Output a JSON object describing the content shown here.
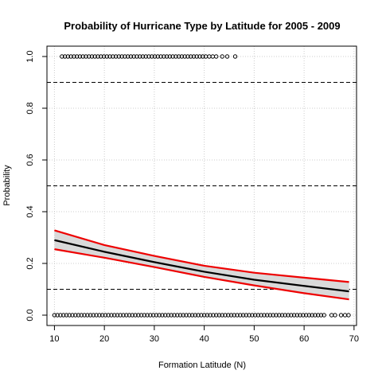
{
  "chart_data": {
    "type": "scatter",
    "title": "Probability of Hurricane Type by Latitude for 2005 - 2009",
    "xlabel": "Formation Latitude (N)",
    "ylabel": "Probability",
    "xlim": [
      8.5,
      70.5
    ],
    "ylim": [
      -0.04,
      1.04
    ],
    "x_ticks": [
      10,
      20,
      30,
      40,
      50,
      60,
      70
    ],
    "y_ticks": [
      0.0,
      0.2,
      0.4,
      0.6,
      0.8,
      1.0
    ],
    "x_tick_labels": [
      "10",
      "20",
      "30",
      "40",
      "50",
      "60",
      "70"
    ],
    "y_tick_labels": [
      "0.0",
      "0.2",
      "0.4",
      "0.6",
      "0.8",
      "1.0"
    ],
    "grid": true,
    "reference_lines_y": [
      0.1,
      0.5,
      0.9
    ],
    "points_y1": [
      11.5,
      12.1,
      12.7,
      13.3,
      13.9,
      14.5,
      15.1,
      15.7,
      16.3,
      16.9,
      17.5,
      18.1,
      18.7,
      19.3,
      19.9,
      20.5,
      21.1,
      21.7,
      22.3,
      22.9,
      23.5,
      24.1,
      24.7,
      25.3,
      25.9,
      26.5,
      27.1,
      27.7,
      28.3,
      28.9,
      29.5,
      30.1,
      30.7,
      31.3,
      31.9,
      32.5,
      33.1,
      33.7,
      34.3,
      34.9,
      35.5,
      36.1,
      36.7,
      37.3,
      37.9,
      38.5,
      39.1,
      39.7,
      40.3,
      41.0,
      41.7,
      42.4,
      43.6,
      44.6,
      46.2
    ],
    "points_y0": [
      10.0,
      10.6,
      11.2,
      11.8,
      12.4,
      13.0,
      13.6,
      14.2,
      14.8,
      15.4,
      16.0,
      16.6,
      17.2,
      17.8,
      18.4,
      19.0,
      19.6,
      20.2,
      20.8,
      21.4,
      22.0,
      22.6,
      23.2,
      23.8,
      24.4,
      25.0,
      25.6,
      26.2,
      26.8,
      27.4,
      28.0,
      28.6,
      29.2,
      29.8,
      30.4,
      31.0,
      31.6,
      32.2,
      32.8,
      33.4,
      34.0,
      34.6,
      35.2,
      35.8,
      36.4,
      37.0,
      37.6,
      38.2,
      38.8,
      39.4,
      40.0,
      40.6,
      41.2,
      41.8,
      42.4,
      43.0,
      43.6,
      44.2,
      44.8,
      45.4,
      46.0,
      46.6,
      47.2,
      47.8,
      48.4,
      49.0,
      49.6,
      50.2,
      50.8,
      51.4,
      52.0,
      52.6,
      53.2,
      53.8,
      54.4,
      55.0,
      55.6,
      56.2,
      56.8,
      57.4,
      58.0,
      58.6,
      59.2,
      59.8,
      60.4,
      61.0,
      61.6,
      62.2,
      62.8,
      63.4,
      64.0,
      65.5,
      66.2,
      67.4,
      68.2,
      68.9
    ],
    "fit": {
      "x": [
        10,
        20,
        30,
        40,
        50,
        60,
        69
      ],
      "y": [
        0.29,
        0.245,
        0.205,
        0.168,
        0.137,
        0.113,
        0.092
      ],
      "lower": [
        0.255,
        0.222,
        0.186,
        0.148,
        0.115,
        0.085,
        0.061
      ],
      "upper": [
        0.328,
        0.271,
        0.229,
        0.191,
        0.164,
        0.145,
        0.128
      ]
    },
    "colors": {
      "fit_line": "#000000",
      "ci_line": "#ee0000",
      "ci_band": "#d9d9d9",
      "points": "#000000",
      "grid": "#cccccc"
    }
  }
}
